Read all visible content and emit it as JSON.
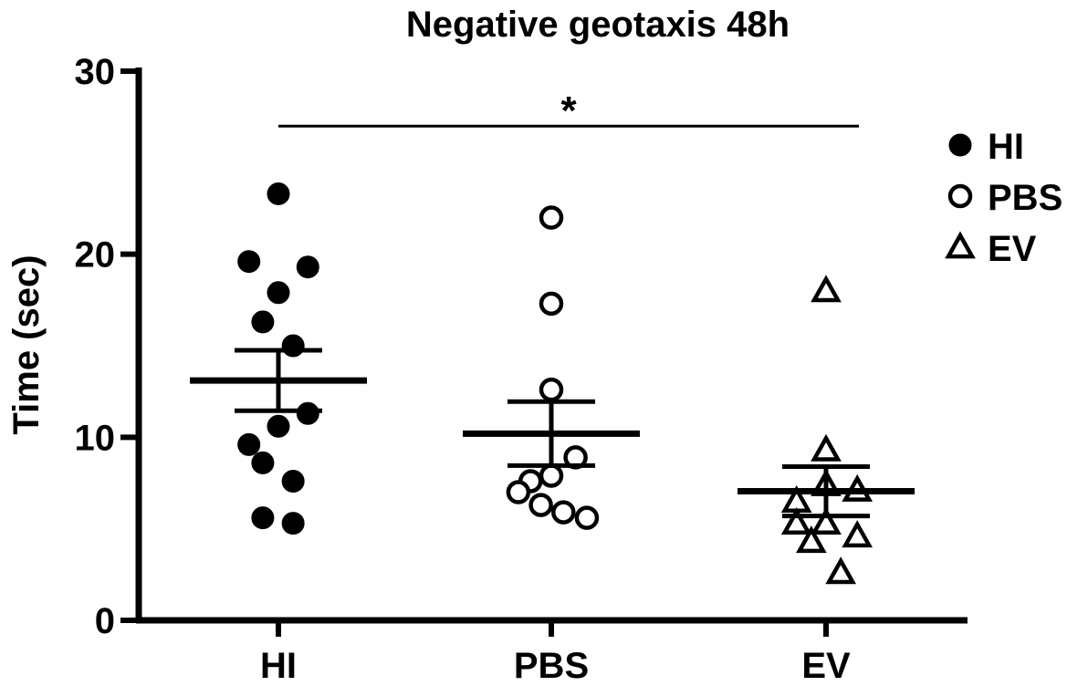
{
  "chart_data": {
    "type": "scatter",
    "title": "Negative geotaxis 48h",
    "ylabel": "Time (sec)",
    "xlabel": "",
    "ylim": [
      0,
      30
    ],
    "yticks": [
      0,
      10,
      20,
      30
    ],
    "categories": [
      "HI",
      "PBS",
      "EV"
    ],
    "series": [
      {
        "name": "HI",
        "marker": "filled-circle",
        "points": [
          {
            "dx": 0.0,
            "y": 23.3
          },
          {
            "dx": -0.34,
            "y": 19.6
          },
          {
            "dx": 0.34,
            "y": 19.3
          },
          {
            "dx": 0.0,
            "y": 17.9
          },
          {
            "dx": -0.18,
            "y": 16.3
          },
          {
            "dx": 0.17,
            "y": 15.0
          },
          {
            "dx": 0.34,
            "y": 11.3
          },
          {
            "dx": 0.0,
            "y": 10.6
          },
          {
            "dx": -0.34,
            "y": 9.6
          },
          {
            "dx": -0.18,
            "y": 8.6
          },
          {
            "dx": 0.17,
            "y": 7.6
          },
          {
            "dx": -0.18,
            "y": 5.6
          },
          {
            "dx": 0.17,
            "y": 5.3
          }
        ],
        "mean": 13.1,
        "sem": 1.65
      },
      {
        "name": "PBS",
        "marker": "open-circle",
        "points": [
          {
            "dx": 0.0,
            "y": 22.0
          },
          {
            "dx": 0.0,
            "y": 17.3
          },
          {
            "dx": 0.0,
            "y": 12.6
          },
          {
            "dx": 0.28,
            "y": 8.9
          },
          {
            "dx": 0.0,
            "y": 7.9
          },
          {
            "dx": -0.24,
            "y": 7.6
          },
          {
            "dx": -0.38,
            "y": 7.0
          },
          {
            "dx": -0.12,
            "y": 6.3
          },
          {
            "dx": 0.14,
            "y": 5.9
          },
          {
            "dx": 0.41,
            "y": 5.6
          }
        ],
        "mean": 10.2,
        "sem": 1.75
      },
      {
        "name": "EV",
        "marker": "open-triangle",
        "points": [
          {
            "dx": 0.0,
            "y": 18.0
          },
          {
            "dx": 0.0,
            "y": 9.3
          },
          {
            "dx": 0.0,
            "y": 7.4
          },
          {
            "dx": 0.36,
            "y": 7.1
          },
          {
            "dx": -0.34,
            "y": 6.5
          },
          {
            "dx": -0.34,
            "y": 5.3
          },
          {
            "dx": 0.0,
            "y": 5.3
          },
          {
            "dx": 0.36,
            "y": 4.6
          },
          {
            "dx": -0.17,
            "y": 4.3
          },
          {
            "dx": 0.17,
            "y": 2.6
          }
        ],
        "mean": 7.05,
        "sem": 1.35
      }
    ],
    "significance": [
      {
        "from": "HI",
        "to": "EV",
        "y": 27.0,
        "label": "*"
      }
    ],
    "legend": {
      "placement": "right",
      "entries": [
        {
          "label": "HI",
          "marker": "filled-circle"
        },
        {
          "label": "PBS",
          "marker": "open-circle"
        },
        {
          "label": "EV",
          "marker": "open-triangle"
        }
      ]
    },
    "grid": false,
    "colors": {
      "ink": "#000000",
      "background": "#ffffff"
    }
  }
}
